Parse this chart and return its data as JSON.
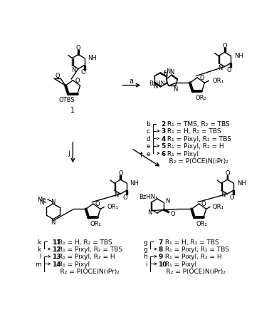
{
  "background_color": "#ffffff",
  "figsize": [
    3.92,
    4.6
  ],
  "dpi": 100,
  "legend_rt": [
    {
      "letter": "b",
      "bold": "2",
      "text": " R₁ = TMS, R₂ = TBS",
      "bracket_top": true,
      "bracket_bot": false,
      "arrow": false
    },
    {
      "letter": "c",
      "bold": "3",
      "text": " R₁ = H, R₂ = TBS",
      "bracket_top": true,
      "bracket_bot": false,
      "arrow": true
    },
    {
      "letter": "d",
      "bold": "4",
      "text": " R₁ = Pixyl, R₂ = TBS",
      "bracket_top": true,
      "bracket_bot": false,
      "arrow": true
    },
    {
      "letter": "e",
      "bold": "5",
      "text": " R₁ = Pixyl, R₂ = H",
      "bracket_top": true,
      "bracket_bot": false,
      "arrow": true
    },
    {
      "letter": "e",
      "bold": "6",
      "text": " R₁ = Pixyl",
      "bracket_top": false,
      "bracket_bot": false,
      "arrow": true
    },
    {
      "letter": "",
      "bold": "",
      "text": "    R₂ = P(OCE)N(iPr)₂",
      "bracket_top": false,
      "bracket_bot": false,
      "arrow": false
    }
  ],
  "legend_bl": [
    {
      "letter": "k",
      "bold": "11",
      "text": " R₁ = H, R₂ = TBS",
      "bracket_top": true,
      "bracket_bot": false,
      "arrow": false
    },
    {
      "letter": "k",
      "bold": "12",
      "text": " R₁ = Pixyl, R₂ = TBS",
      "bracket_top": false,
      "bracket_bot": false,
      "arrow": true
    },
    {
      "letter": "l",
      "bold": "13",
      "text": " R₁ = Pixyl, R₂ = H",
      "bracket_top": true,
      "bracket_bot": false,
      "arrow": true
    },
    {
      "letter": "m",
      "bold": "14",
      "text": " R₁ = Pixyl",
      "bracket_top": true,
      "bracket_bot": false,
      "arrow": true
    },
    {
      "letter": "",
      "bold": "",
      "text": "    R₂ = P(OCE)N(iPr)₂",
      "bracket_top": false,
      "bracket_bot": false,
      "arrow": false
    }
  ],
  "legend_br": [
    {
      "letter": "g",
      "bold": "7",
      "text": " R₁ = H, R₂ = TBS",
      "bracket_top": true,
      "bracket_bot": false,
      "arrow": false
    },
    {
      "letter": "g",
      "bold": "8",
      "text": " R₁ = Pixyl, R₂ = TBS",
      "bracket_top": false,
      "bracket_bot": false,
      "arrow": true
    },
    {
      "letter": "h",
      "bold": "9",
      "text": " R₁ = Pixyl, R₂ = H",
      "bracket_top": true,
      "bracket_bot": false,
      "arrow": true
    },
    {
      "letter": "i",
      "bold": "10",
      "text": " R₁ = Pixyl",
      "bracket_top": true,
      "bracket_bot": false,
      "arrow": true
    },
    {
      "letter": "",
      "bold": "",
      "text": "    R₂ = P(OCE)N(iPr)₂",
      "bracket_top": false,
      "bracket_bot": false,
      "arrow": false
    }
  ]
}
